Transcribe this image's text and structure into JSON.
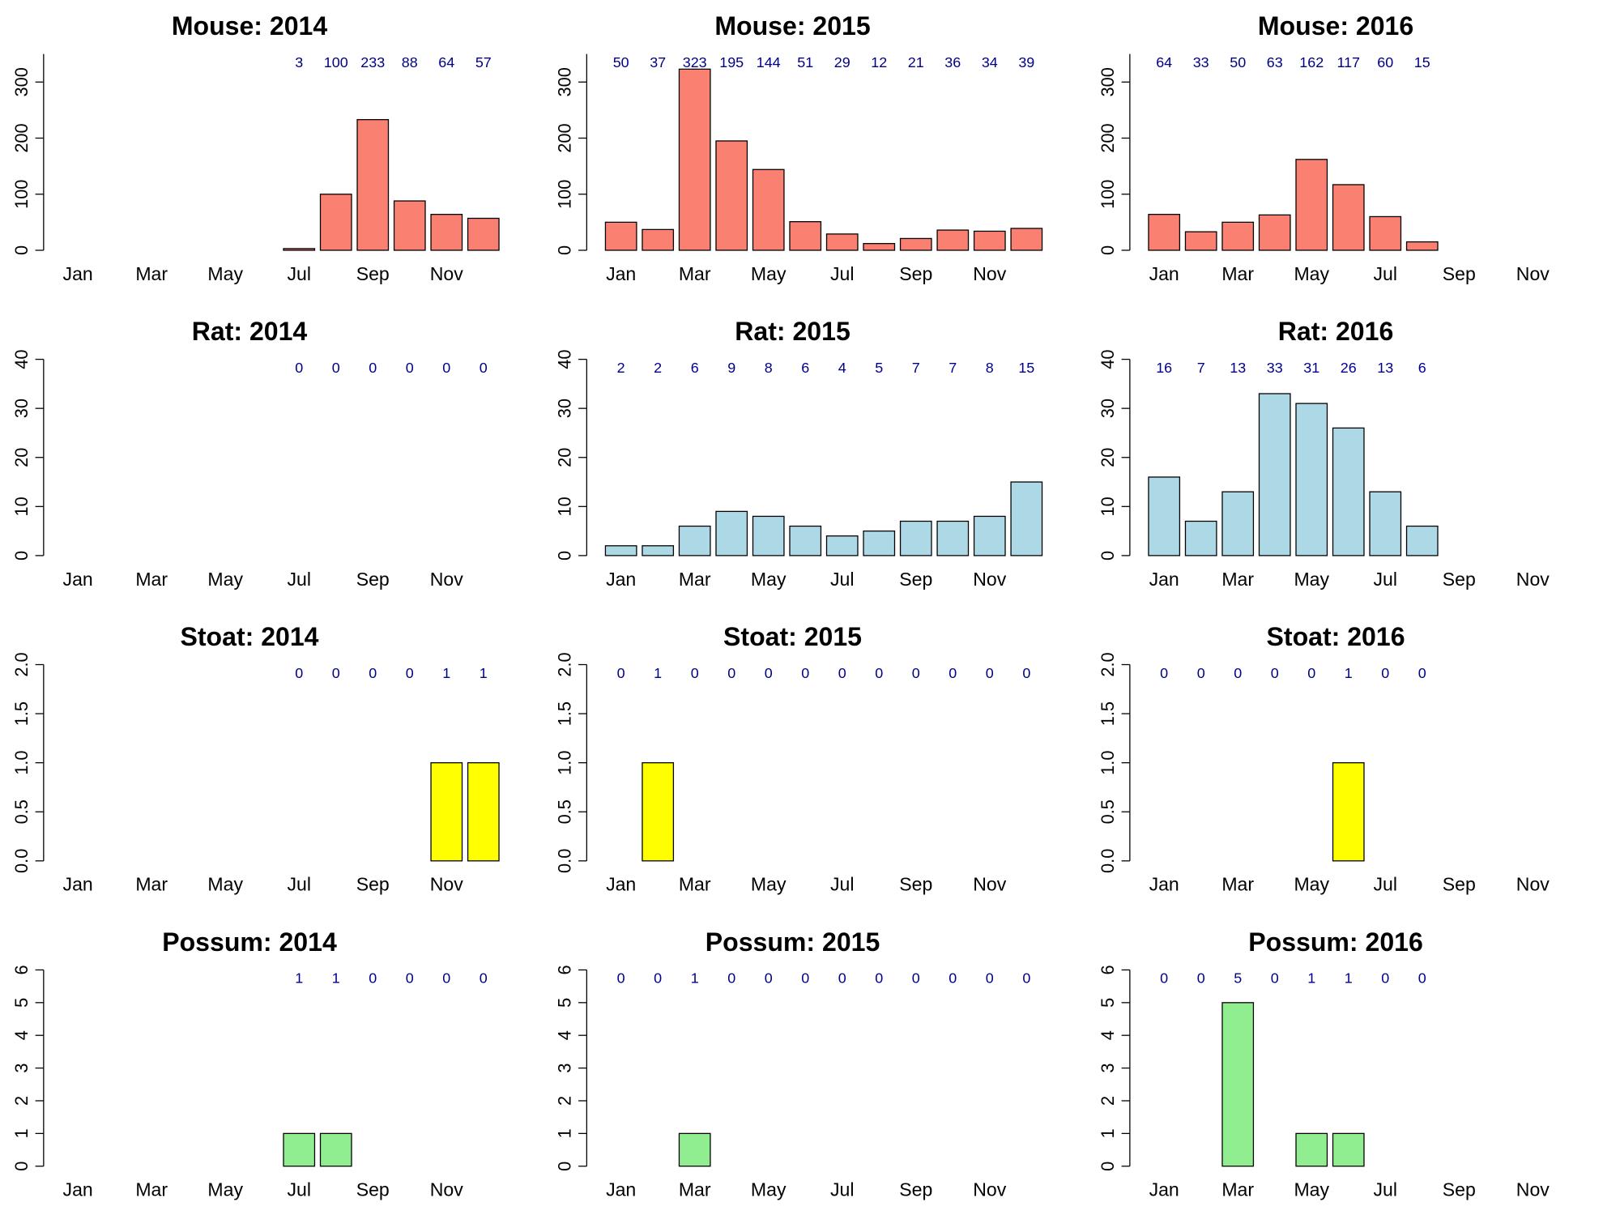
{
  "chart_data": [
    {
      "type": "bar",
      "title": "Mouse: 2014",
      "categories": [
        "Jan",
        null,
        "Mar",
        null,
        "May",
        null,
        "Jul",
        null,
        "Sep",
        null,
        "Nov",
        null
      ],
      "values": [
        null,
        null,
        null,
        null,
        null,
        null,
        3,
        100,
        233,
        88,
        64,
        57
      ],
      "color": "#fa8072",
      "ylim": [
        0,
        350
      ],
      "yticks": [
        0,
        100,
        200,
        300
      ]
    },
    {
      "type": "bar",
      "title": "Mouse: 2015",
      "categories": [
        "Jan",
        null,
        "Mar",
        null,
        "May",
        null,
        "Jul",
        null,
        "Sep",
        null,
        "Nov",
        null
      ],
      "values": [
        50,
        37,
        323,
        195,
        144,
        51,
        29,
        12,
        21,
        36,
        34,
        39
      ],
      "color": "#fa8072",
      "ylim": [
        0,
        350
      ],
      "yticks": [
        0,
        100,
        200,
        300
      ]
    },
    {
      "type": "bar",
      "title": "Mouse: 2016",
      "categories": [
        "Jan",
        null,
        "Mar",
        null,
        "May",
        null,
        "Jul",
        null,
        "Sep",
        null,
        "Nov",
        null
      ],
      "values": [
        64,
        33,
        50,
        63,
        162,
        117,
        60,
        15,
        null,
        null,
        null,
        null
      ],
      "color": "#fa8072",
      "ylim": [
        0,
        350
      ],
      "yticks": [
        0,
        100,
        200,
        300
      ]
    },
    {
      "type": "bar",
      "title": "Rat: 2014",
      "categories": [
        "Jan",
        null,
        "Mar",
        null,
        "May",
        null,
        "Jul",
        null,
        "Sep",
        null,
        "Nov",
        null
      ],
      "values": [
        null,
        null,
        null,
        null,
        null,
        null,
        0,
        0,
        0,
        0,
        0,
        0
      ],
      "color": "#add8e6",
      "ylim": [
        0,
        40
      ],
      "yticks": [
        0,
        10,
        20,
        30,
        40
      ]
    },
    {
      "type": "bar",
      "title": "Rat: 2015",
      "categories": [
        "Jan",
        null,
        "Mar",
        null,
        "May",
        null,
        "Jul",
        null,
        "Sep",
        null,
        "Nov",
        null
      ],
      "values": [
        2,
        2,
        6,
        9,
        8,
        6,
        4,
        5,
        7,
        7,
        8,
        15
      ],
      "color": "#add8e6",
      "ylim": [
        0,
        40
      ],
      "yticks": [
        0,
        10,
        20,
        30,
        40
      ]
    },
    {
      "type": "bar",
      "title": "Rat: 2016",
      "categories": [
        "Jan",
        null,
        "Mar",
        null,
        "May",
        null,
        "Jul",
        null,
        "Sep",
        null,
        "Nov",
        null
      ],
      "values": [
        16,
        7,
        13,
        33,
        31,
        26,
        13,
        6,
        null,
        null,
        null,
        null
      ],
      "color": "#add8e6",
      "ylim": [
        0,
        40
      ],
      "yticks": [
        0,
        10,
        20,
        30,
        40
      ]
    },
    {
      "type": "bar",
      "title": "Stoat: 2014",
      "categories": [
        "Jan",
        null,
        "Mar",
        null,
        "May",
        null,
        "Jul",
        null,
        "Sep",
        null,
        "Nov",
        null
      ],
      "values": [
        null,
        null,
        null,
        null,
        null,
        null,
        0,
        0,
        0,
        0,
        1,
        1
      ],
      "color": "#ffff00",
      "ylim": [
        0,
        2
      ],
      "yticks": [
        {
          "value": 0,
          "label": "0.0"
        },
        {
          "value": 0.5,
          "label": "0.5"
        },
        {
          "value": 1,
          "label": "1.0"
        },
        {
          "value": 1.5,
          "label": "1.5"
        },
        {
          "value": 2,
          "label": "2.0"
        }
      ]
    },
    {
      "type": "bar",
      "title": "Stoat: 2015",
      "categories": [
        "Jan",
        null,
        "Mar",
        null,
        "May",
        null,
        "Jul",
        null,
        "Sep",
        null,
        "Nov",
        null
      ],
      "values": [
        0,
        1,
        0,
        0,
        0,
        0,
        0,
        0,
        0,
        0,
        0,
        0
      ],
      "color": "#ffff00",
      "ylim": [
        0,
        2
      ],
      "yticks": [
        {
          "value": 0,
          "label": "0.0"
        },
        {
          "value": 0.5,
          "label": "0.5"
        },
        {
          "value": 1,
          "label": "1.0"
        },
        {
          "value": 1.5,
          "label": "1.5"
        },
        {
          "value": 2,
          "label": "2.0"
        }
      ]
    },
    {
      "type": "bar",
      "title": "Stoat: 2016",
      "categories": [
        "Jan",
        null,
        "Mar",
        null,
        "May",
        null,
        "Jul",
        null,
        "Sep",
        null,
        "Nov",
        null
      ],
      "values": [
        0,
        0,
        0,
        0,
        0,
        1,
        0,
        0,
        null,
        null,
        null,
        null
      ],
      "color": "#ffff00",
      "ylim": [
        0,
        2
      ],
      "yticks": [
        {
          "value": 0,
          "label": "0.0"
        },
        {
          "value": 0.5,
          "label": "0.5"
        },
        {
          "value": 1,
          "label": "1.0"
        },
        {
          "value": 1.5,
          "label": "1.5"
        },
        {
          "value": 2,
          "label": "2.0"
        }
      ]
    },
    {
      "type": "bar",
      "title": "Possum: 2014",
      "categories": [
        "Jan",
        null,
        "Mar",
        null,
        "May",
        null,
        "Jul",
        null,
        "Sep",
        null,
        "Nov",
        null
      ],
      "values": [
        null,
        null,
        null,
        null,
        null,
        null,
        1,
        1,
        0,
        0,
        0,
        0
      ],
      "color": "#90ee90",
      "ylim": [
        0,
        6
      ],
      "yticks": [
        0,
        1,
        2,
        3,
        4,
        5,
        6
      ]
    },
    {
      "type": "bar",
      "title": "Possum: 2015",
      "categories": [
        "Jan",
        null,
        "Mar",
        null,
        "May",
        null,
        "Jul",
        null,
        "Sep",
        null,
        "Nov",
        null
      ],
      "values": [
        0,
        0,
        1,
        0,
        0,
        0,
        0,
        0,
        0,
        0,
        0,
        0
      ],
      "color": "#90ee90",
      "ylim": [
        0,
        6
      ],
      "yticks": [
        0,
        1,
        2,
        3,
        4,
        5,
        6
      ]
    },
    {
      "type": "bar",
      "title": "Possum: 2016",
      "categories": [
        "Jan",
        null,
        "Mar",
        null,
        "May",
        null,
        "Jul",
        null,
        "Sep",
        null,
        "Nov",
        null
      ],
      "values": [
        0,
        0,
        5,
        0,
        1,
        1,
        0,
        0,
        null,
        null,
        null,
        null
      ],
      "color": "#90ee90",
      "ylim": [
        0,
        6
      ],
      "yticks": [
        0,
        1,
        2,
        3,
        4,
        5,
        6
      ]
    }
  ]
}
